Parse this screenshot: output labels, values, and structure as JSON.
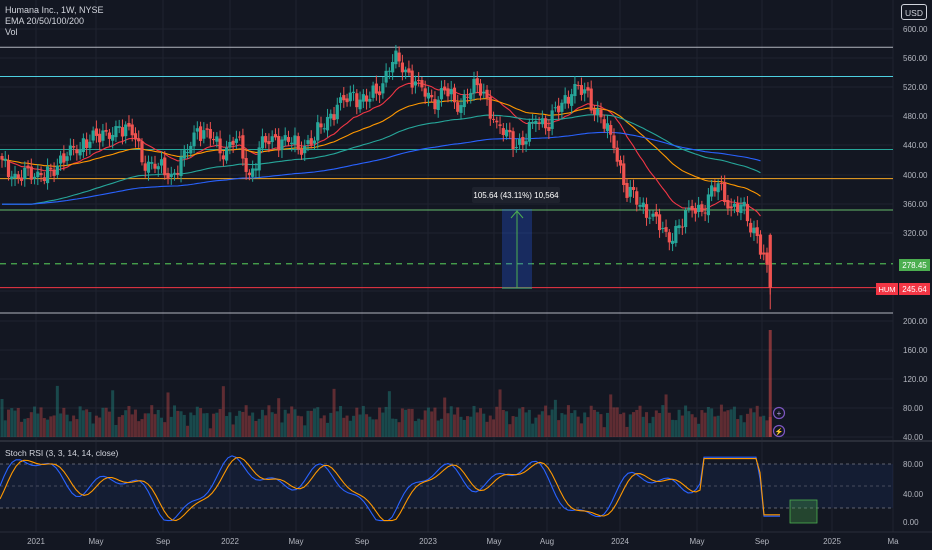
{
  "legend": {
    "title": "Humana Inc., 1W, NYSE",
    "ema": "EMA 20/50/100/200",
    "vol": "Vol"
  },
  "currency": "USD",
  "measure_label": "105.64 (43.11%) 10,564",
  "symbol": "HUM",
  "stoch_label": "Stoch RSI (3, 3, 14, 14, close)",
  "price_axis": [
    "600.00",
    "560.00",
    "520.00",
    "480.00",
    "440.00",
    "400.00",
    "360.00",
    "320.00",
    "240.00",
    "200.00",
    "160.00",
    "120.00",
    "80.00",
    "40.00"
  ],
  "stoch_axis": [
    "80.00",
    "40.00",
    "0.00"
  ],
  "time_axis": [
    "2021",
    "May",
    "Sep",
    "2022",
    "May",
    "Sep",
    "2023",
    "May",
    "Aug",
    "2024",
    "May",
    "Sep",
    "2025",
    "Ma"
  ],
  "colors": {
    "background": "#131722",
    "up": "#26a69a",
    "down": "#ef5350",
    "ema20": "#f23645",
    "ema50": "#ff9800",
    "ema100": "#26a69a",
    "ema200": "#2962ff",
    "green_tag": "#4caf50",
    "red_tag": "#f23645",
    "orange_line": "#f5a623"
  },
  "chart_data": {
    "type": "candlestick",
    "ticker": "HUM",
    "interval": "1W",
    "exchange": "NYSE",
    "y_range": [
      220,
      610
    ],
    "price_labels": [
      {
        "name": "current",
        "value": "245.64"
      },
      {
        "name": "support",
        "value": "278.45"
      }
    ],
    "measurement": {
      "change": 105.64,
      "percent": "43.11%",
      "ticks": "10,564"
    },
    "horizontal_levels": [
      575,
      535,
      435,
      395,
      352,
      278.45,
      244,
      211
    ],
    "close_series": [
      [
        0,
        415
      ],
      [
        0.02,
        400
      ],
      [
        0.04,
        395
      ],
      [
        0.06,
        405
      ],
      [
        0.08,
        400
      ],
      [
        0.1,
        440
      ],
      [
        0.12,
        430
      ],
      [
        0.14,
        460
      ],
      [
        0.16,
        445
      ],
      [
        0.18,
        470
      ],
      [
        0.2,
        455
      ],
      [
        0.22,
        420
      ],
      [
        0.24,
        410
      ],
      [
        0.26,
        400
      ],
      [
        0.28,
        420
      ],
      [
        0.3,
        465
      ],
      [
        0.32,
        450
      ],
      [
        0.34,
        435
      ],
      [
        0.36,
        450
      ],
      [
        0.38,
        400
      ],
      [
        0.4,
        440
      ],
      [
        0.42,
        450
      ],
      [
        0.44,
        445
      ],
      [
        0.46,
        440
      ],
      [
        0.48,
        450
      ],
      [
        0.5,
        480
      ],
      [
        0.52,
        495
      ],
      [
        0.54,
        510
      ],
      [
        0.56,
        500
      ],
      [
        0.58,
        520
      ],
      [
        0.6,
        560
      ],
      [
        0.62,
        545
      ],
      [
        0.64,
        520
      ],
      [
        0.66,
        500
      ],
      [
        0.68,
        515
      ],
      [
        0.7,
        495
      ],
      [
        0.72,
        520
      ],
      [
        0.74,
        515
      ],
      [
        0.76,
        465
      ],
      [
        0.78,
        450
      ],
      [
        0.8,
        440
      ],
      [
        0.82,
        480
      ],
      [
        0.84,
        470
      ],
      [
        0.86,
        500
      ],
      [
        0.88,
        520
      ],
      [
        0.9,
        505
      ],
      [
        0.92,
        478
      ],
      [
        0.94,
        440
      ],
      [
        0.96,
        380
      ],
      [
        0.98,
        360
      ],
      [
        1.0,
        345
      ],
      [
        1.02,
        310
      ],
      [
        1.04,
        330
      ],
      [
        1.06,
        352
      ],
      [
        1.08,
        360
      ],
      [
        1.1,
        390
      ],
      [
        1.12,
        355
      ],
      [
        1.14,
        350
      ],
      [
        1.16,
        315
      ],
      [
        1.18,
        250
      ]
    ]
  }
}
